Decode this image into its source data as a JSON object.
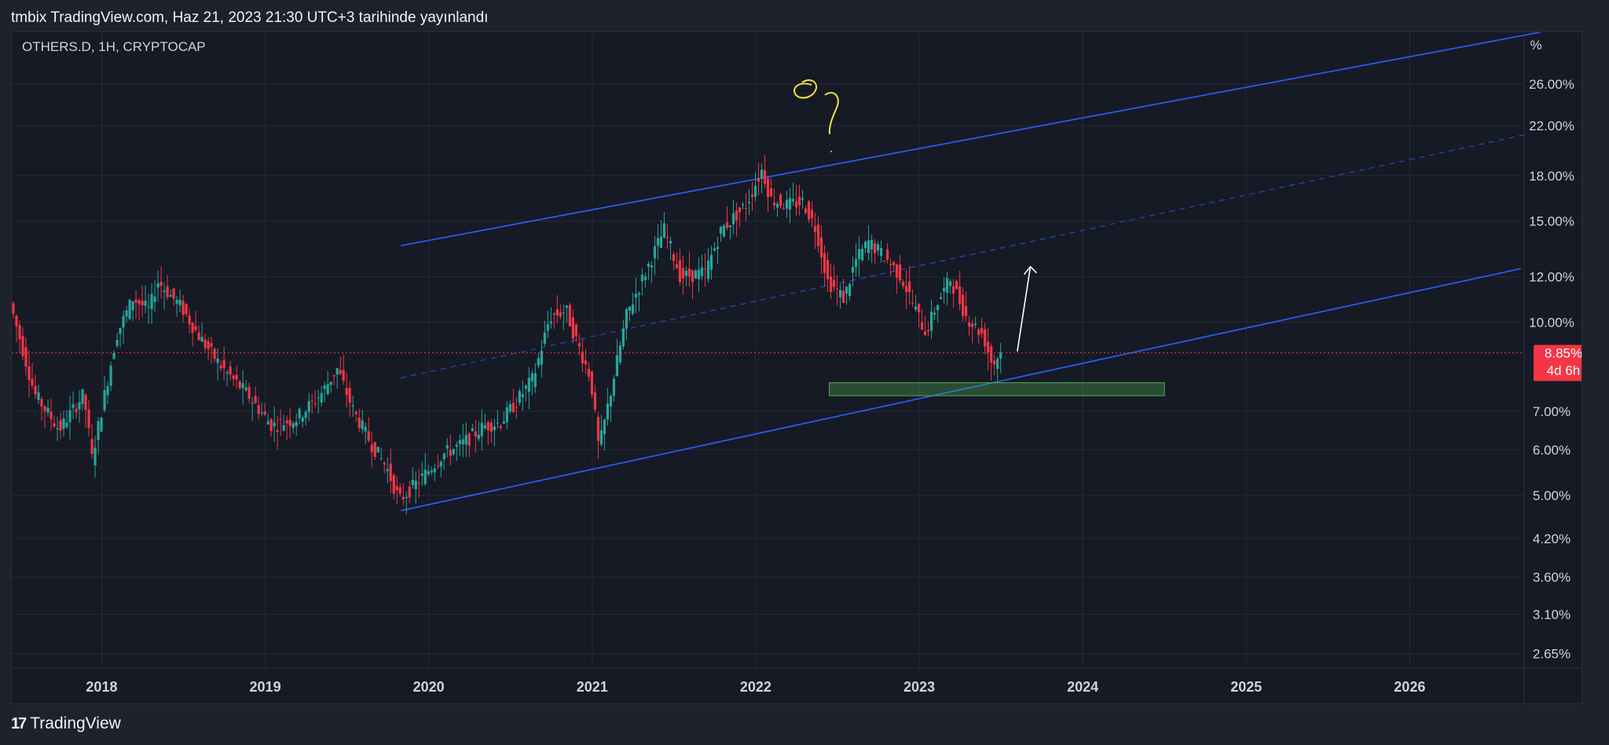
{
  "header": {
    "publish_text": "tmbix TradingView.com, Haz 21, 2023 21:30 UTC+3 tarihinde yayınlandı"
  },
  "footer": {
    "brand": "TradingView",
    "logo_glyph": "17"
  },
  "chart_data": {
    "type": "candlestick",
    "symbol_label": "OTHERS.D, 1H, CRYPTOCAP",
    "y_unit": "%",
    "y_scale": "log",
    "ylim": [
      2.5,
      32
    ],
    "xlim": [
      2017.45,
      2026.7
    ],
    "x_ticks": [
      "2018",
      "2019",
      "2020",
      "2021",
      "2022",
      "2023",
      "2024",
      "2025",
      "2026"
    ],
    "y_ticks": [
      "26.00%",
      "22.00%",
      "18.00%",
      "15.00%",
      "12.00%",
      "10.00%",
      "7.00%",
      "6.00%",
      "5.00%",
      "4.20%",
      "3.60%",
      "3.10%",
      "2.65%"
    ],
    "last_price": {
      "value": 8.85,
      "label": "8.85%",
      "countdown": "4d 6h",
      "color": "#f23645"
    },
    "colors": {
      "up": "#26a69a",
      "down": "#f23645",
      "channel": "#2962ff",
      "grid": "#252a36",
      "annotation": "#f5e342",
      "arrow": "#ffffff"
    },
    "price_path": [
      [
        2017.45,
        10.8
      ],
      [
        2017.6,
        7.5
      ],
      [
        2017.75,
        6.5
      ],
      [
        2017.9,
        7.5
      ],
      [
        2017.95,
        5.8
      ],
      [
        2018.1,
        9.5
      ],
      [
        2018.2,
        11.0
      ],
      [
        2018.3,
        10.5
      ],
      [
        2018.35,
        11.8
      ],
      [
        2018.5,
        10.6
      ],
      [
        2018.6,
        9.5
      ],
      [
        2018.75,
        8.3
      ],
      [
        2018.9,
        7.5
      ],
      [
        2019.05,
        6.6
      ],
      [
        2019.2,
        6.8
      ],
      [
        2019.35,
        7.5
      ],
      [
        2019.45,
        8.3
      ],
      [
        2019.55,
        7.0
      ],
      [
        2019.65,
        6.2
      ],
      [
        2019.75,
        5.6
      ],
      [
        2019.83,
        4.9
      ],
      [
        2019.95,
        5.3
      ],
      [
        2020.1,
        5.9
      ],
      [
        2020.2,
        6.1
      ],
      [
        2020.35,
        6.6
      ],
      [
        2020.45,
        6.7
      ],
      [
        2020.55,
        7.3
      ],
      [
        2020.65,
        8.0
      ],
      [
        2020.75,
        10.2
      ],
      [
        2020.85,
        10.5
      ],
      [
        2020.9,
        9.5
      ],
      [
        2021.0,
        8.0
      ],
      [
        2021.05,
        6.0
      ],
      [
        2021.12,
        7.5
      ],
      [
        2021.22,
        10.3
      ],
      [
        2021.35,
        12.5
      ],
      [
        2021.45,
        14.5
      ],
      [
        2021.55,
        12.0
      ],
      [
        2021.7,
        12.2
      ],
      [
        2021.8,
        14.5
      ],
      [
        2021.95,
        16.0
      ],
      [
        2022.05,
        18.5
      ],
      [
        2022.1,
        16.4
      ],
      [
        2022.2,
        16.0
      ],
      [
        2022.3,
        16.2
      ],
      [
        2022.38,
        14.5
      ],
      [
        2022.45,
        11.8
      ],
      [
        2022.55,
        11.0
      ],
      [
        2022.62,
        12.8
      ],
      [
        2022.7,
        13.8
      ],
      [
        2022.8,
        13.0
      ],
      [
        2022.9,
        12.0
      ],
      [
        2023.0,
        10.3
      ],
      [
        2023.05,
        9.6
      ],
      [
        2023.12,
        10.8
      ],
      [
        2023.2,
        11.9
      ],
      [
        2023.3,
        10.2
      ],
      [
        2023.4,
        9.5
      ],
      [
        2023.46,
        8.4
      ],
      [
        2023.5,
        8.85
      ]
    ],
    "drawings": {
      "channel_upper": [
        [
          2019.83,
          13.6
        ],
        [
          2026.8,
          32.0
        ]
      ],
      "channel_lower": [
        [
          2019.83,
          4.7
        ],
        [
          2026.68,
          12.4
        ]
      ],
      "channel_mid": [
        [
          2019.83,
          8.0
        ],
        [
          2026.7,
          21.2
        ]
      ],
      "support_zone": {
        "x": [
          2022.45,
          2024.5
        ],
        "y": [
          7.45,
          7.85
        ]
      },
      "arrow": [
        [
          2023.6,
          8.9
        ],
        [
          2023.68,
          12.5
        ]
      ]
    }
  }
}
